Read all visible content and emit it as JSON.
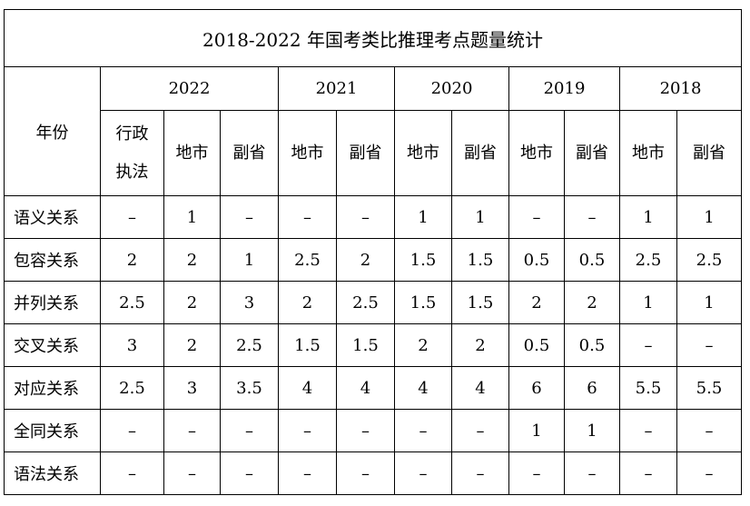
{
  "title": "2018-2022 年国考类比推理考点题量统计",
  "header": {
    "year_label": "年份",
    "years": [
      "2022",
      "2021",
      "2020",
      "2019",
      "2018"
    ],
    "regions": [
      {
        "line1": "行政",
        "line2": "执法"
      },
      {
        "line1": "地市",
        "line2": ""
      },
      {
        "line1": "副省",
        "line2": ""
      },
      {
        "line1": "地市",
        "line2": ""
      },
      {
        "line1": "副省",
        "line2": ""
      },
      {
        "line1": "地市",
        "line2": ""
      },
      {
        "line1": "副省",
        "line2": ""
      },
      {
        "line1": "地市",
        "line2": ""
      },
      {
        "line1": "副省",
        "line2": ""
      },
      {
        "line1": "地市",
        "line2": ""
      },
      {
        "line1": "副省",
        "line2": ""
      }
    ]
  },
  "rows": [
    {
      "label": "语义关系",
      "values": [
        "–",
        "1",
        "–",
        "–",
        "–",
        "1",
        "1",
        "–",
        "–",
        "1",
        "1"
      ]
    },
    {
      "label": "包容关系",
      "values": [
        "2",
        "2",
        "1",
        "2.5",
        "2",
        "1.5",
        "1.5",
        "0.5",
        "0.5",
        "2.5",
        "2.5"
      ]
    },
    {
      "label": "并列关系",
      "values": [
        "2.5",
        "2",
        "3",
        "2",
        "2.5",
        "1.5",
        "1.5",
        "2",
        "2",
        "1",
        "1"
      ]
    },
    {
      "label": "交叉关系",
      "values": [
        "3",
        "2",
        "2.5",
        "1.5",
        "1.5",
        "2",
        "2",
        "0.5",
        "0.5",
        "–",
        "–"
      ]
    },
    {
      "label": "对应关系",
      "values": [
        "2.5",
        "3",
        "3.5",
        "4",
        "4",
        "4",
        "4",
        "6",
        "6",
        "5.5",
        "5.5"
      ]
    },
    {
      "label": "全同关系",
      "values": [
        "–",
        "–",
        "–",
        "–",
        "–",
        "–",
        "–",
        "1",
        "1",
        "–",
        "–"
      ]
    },
    {
      "label": "语法关系",
      "values": [
        "–",
        "–",
        "–",
        "–",
        "–",
        "–",
        "–",
        "–",
        "–",
        "–",
        "–"
      ]
    }
  ]
}
